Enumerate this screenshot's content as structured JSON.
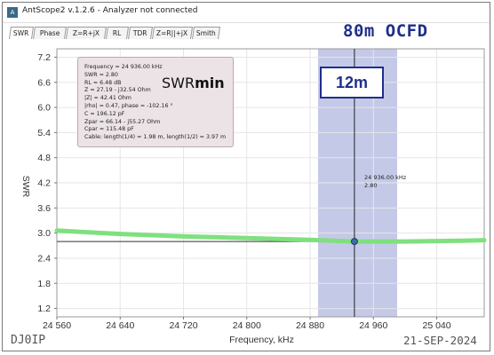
{
  "window": {
    "icon": "app-logo-icon",
    "title": "AntScope2 v.1.2.6 - Analyzer not connected"
  },
  "tabs": [
    {
      "label": "SWR",
      "active": true
    },
    {
      "label": "Phase",
      "active": false
    },
    {
      "label": "Z=R+jX",
      "active": false
    },
    {
      "label": "RL",
      "active": false
    },
    {
      "label": "TDR",
      "active": false
    },
    {
      "label": "Z=R||+jX",
      "active": false
    },
    {
      "label": "Smith",
      "active": false
    }
  ],
  "overlay": {
    "antenna_title": "80m OCFD",
    "swrmin_prefix": "SWR",
    "swrmin_bold": "min",
    "band_label": "12m",
    "footer_left": "DJ0IP",
    "footer_right": "21-SEP-2024"
  },
  "info_box": {
    "lines": [
      "Frequency = 24 936.00 kHz",
      "SWR = 2.80",
      "RL = 6.48 dB",
      "Z = 27.19 - j32.54 Ohm",
      "|Z| = 42.41 Ohm",
      "|rho| = 0.47, phase = -102.16 °",
      "C = 196.12 pF",
      "Zpar = 66.14 - j55.27 Ohm",
      "Cpar = 115.48 pF",
      "Cable: length(1/4) = 1.98 m, length(1/2) = 3.97 m"
    ]
  },
  "cursor": {
    "freq_text": "24 936.00 kHz",
    "swr_text": "2.80",
    "freq_khz": 24936,
    "swr": 2.8
  },
  "colors": {
    "trace": "#7fe07f",
    "reference_line": "#333333",
    "band_highlight": "#c5c9e8",
    "marker": "#3b6fa3",
    "accent": "#1f2f8a"
  },
  "chart_data": {
    "type": "line",
    "xlabel": "Frequency, kHz",
    "ylabel": "SWR",
    "xlim": [
      24560,
      25100
    ],
    "ylim": [
      1.0,
      7.4
    ],
    "x_ticks": [
      24560,
      24640,
      24720,
      24800,
      24880,
      24960,
      25040
    ],
    "x_tick_labels": [
      "24 560",
      "24 640",
      "24 720",
      "24 800",
      "24 880",
      "24 960",
      "25 040"
    ],
    "y_ticks": [
      1.2,
      1.8,
      2.4,
      3.0,
      3.6,
      4.2,
      4.8,
      5.4,
      6.0,
      6.6,
      7.2
    ],
    "y_tick_labels": [
      "1.2",
      "1.8",
      "2.4",
      "3.0",
      "3.6",
      "4.2",
      "4.8",
      "5.4",
      "6.0",
      "6.6",
      "7.2"
    ],
    "grid": true,
    "band_highlight": [
      24890,
      24990
    ],
    "cursor_x": 24936,
    "reference_y": 2.8,
    "series": [
      {
        "x": [
          24560,
          24600,
          24640,
          24680,
          24720,
          24760,
          24800,
          24840,
          24880,
          24920,
          24936,
          24960,
          25000,
          25040,
          25080,
          25100
        ],
        "y": [
          3.06,
          3.02,
          2.98,
          2.95,
          2.92,
          2.9,
          2.88,
          2.86,
          2.84,
          2.81,
          2.8,
          2.8,
          2.8,
          2.81,
          2.82,
          2.83
        ]
      }
    ]
  }
}
